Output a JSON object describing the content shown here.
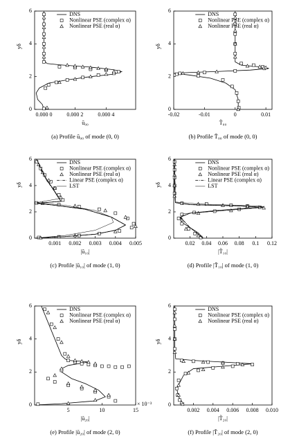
{
  "chart_data": [
    {
      "type": "line",
      "caption": "(a) Profile ū₀₀ of mode (0, 0)",
      "x_label": "ū₀₀",
      "y_label": "yδ",
      "xlim": [
        -6e-05,
        0.00059
      ],
      "ylim": [
        0,
        6
      ],
      "xticks": [
        {
          "value": 0,
          "label": "0.000 0"
        },
        {
          "value": 0.0002,
          "label": "0.000 2"
        },
        {
          "value": 0.0004,
          "label": "0.000 4"
        }
      ],
      "yticks": [
        0,
        2,
        4,
        6
      ],
      "series": [
        {
          "name": "DNS",
          "style": "solid",
          "x": [
            0,
            0,
            2e-05,
            0.0001,
            0.0003,
            0.00045,
            0.0005,
            0.00045,
            0.0003,
            0.00015,
            3e-05,
            -3e-05,
            -5e-05,
            -4e-05,
            -1e-05,
            0
          ],
          "y": [
            6,
            3,
            2.8,
            2.72,
            2.58,
            2.42,
            2.3,
            2.15,
            2.0,
            1.8,
            1.6,
            1.3,
            1.0,
            0.6,
            0.3,
            0
          ]
        },
        {
          "name": "Nonlinear PSE (complex α)",
          "style": "square",
          "x": [
            0,
            0,
            0,
            0,
            0,
            0,
            0.0001,
            0.0002,
            0.0003,
            0.0004,
            0.00048,
            0.00045,
            0.00035,
            0.00025,
            0.00015,
            8e-05,
            3e-05,
            1e-05,
            0
          ],
          "y": [
            5.8,
            5.2,
            4.6,
            4.0,
            3.4,
            2.9,
            2.6,
            2.55,
            2.45,
            2.4,
            2.3,
            2.2,
            2.1,
            1.95,
            1.8,
            1.65,
            1.5,
            1.3,
            0.05
          ]
        },
        {
          "name": "Nonlinear PSE (real α)",
          "style": "triangle",
          "x": [
            0,
            0,
            0,
            0,
            0,
            0.00015,
            0.0002,
            0.00025,
            0.0003,
            0.00035,
            0.0004,
            0.00045,
            0.0004,
            0.0003,
            0.0002,
            0.0001,
            2e-05
          ],
          "y": [
            5.6,
            5.0,
            4.4,
            3.8,
            3.2,
            2.7,
            2.65,
            2.6,
            2.55,
            2.5,
            2.45,
            2.3,
            2.15,
            2.0,
            1.85,
            1.65,
            0.1
          ]
        }
      ]
    },
    {
      "type": "line",
      "caption": "(b) Profile T̃₀₀ of mode (0, 0)",
      "x_label": "T̃₀₀",
      "y_label": "yδ",
      "xlim": [
        -0.02,
        0.012
      ],
      "ylim": [
        0,
        6
      ],
      "xticks": [
        -0.02,
        -0.01,
        0,
        0.01
      ],
      "yticks": [
        0,
        2,
        4,
        6
      ],
      "series": [
        {
          "name": "DNS",
          "style": "solid",
          "x": [
            0,
            0,
            0.002,
            0.008,
            0.011,
            0.005,
            -0.005,
            -0.015,
            -0.02,
            -0.015,
            -0.008,
            -0.003,
            0,
            0.001,
            0.001
          ],
          "y": [
            6,
            2.9,
            2.7,
            2.6,
            2.5,
            2.4,
            2.32,
            2.25,
            2.2,
            2.1,
            1.9,
            1.6,
            1.2,
            0.6,
            0
          ]
        },
        {
          "name": "Nonlinear PSE (complex α)",
          "style": "square",
          "x": [
            0,
            0,
            0,
            0,
            0,
            0.002,
            0.006,
            0.009,
            0.0095,
            0,
            -0.01,
            -0.018,
            -0.019,
            -0.012,
            -0.004,
            -0.001,
            0.0005,
            0.001,
            0.0012
          ],
          "y": [
            5.8,
            5.2,
            4.6,
            4.0,
            3.4,
            2.8,
            2.7,
            2.6,
            2.5,
            2.35,
            2.25,
            2.2,
            2.15,
            2.05,
            1.8,
            1.4,
            1.0,
            0.5,
            0.1
          ]
        },
        {
          "name": "Nonlinear PSE (real α)",
          "style": "triangle",
          "x": [
            0,
            0,
            0,
            0,
            0.004,
            0.008,
            0.01,
            -0.006,
            -0.012,
            -0.017,
            0.001
          ],
          "y": [
            5.6,
            4.8,
            4.0,
            3.2,
            2.65,
            2.6,
            2.55,
            2.3,
            2.25,
            2.2,
            0
          ]
        }
      ]
    },
    {
      "type": "line",
      "caption": "(c) Profile |ū₁₀| of mode (1, 0)",
      "x_label": "|ū₁₀|",
      "y_label": "yδ",
      "xlim": [
        0,
        0.005
      ],
      "ylim": [
        0,
        6
      ],
      "xticks": [
        0.001,
        0.002,
        0.003,
        0.004,
        0.005
      ],
      "yticks": [
        0,
        2,
        4,
        6
      ],
      "series": [
        {
          "name": "DNS",
          "style": "solid",
          "x": [
            0.0001,
            0.0003,
            0.0006,
            0.0009,
            0.0011,
            0.0013,
            0.0001,
            0.001,
            0.0025,
            0.0038,
            0.0045,
            0.004,
            0.003,
            0.0015,
            0
          ],
          "y": [
            6,
            5.2,
            4.4,
            3.8,
            3.3,
            2.8,
            2.65,
            2.5,
            2.2,
            1.6,
            1.0,
            0.6,
            0.3,
            0.12,
            0
          ]
        },
        {
          "name": "Nonlinear PSE (complex α)",
          "style": "square",
          "x": [
            0.0001,
            0.0003,
            0.0005,
            0.0008,
            0.001,
            0.0012,
            0.0014,
            0.0001,
            0.0012,
            0.0022,
            0.0032,
            0.004,
            0.0046,
            0.0049,
            0.0048,
            0.0042,
            0.0032,
            0.0022,
            0.0012,
            0.0002
          ],
          "y": [
            5.8,
            5.3,
            4.8,
            4.3,
            3.8,
            3.3,
            2.9,
            2.68,
            2.55,
            2.4,
            2.2,
            1.9,
            1.5,
            1.1,
            0.8,
            0.55,
            0.35,
            0.2,
            0.1,
            0.05
          ]
        },
        {
          "name": "Nonlinear PSE (real α)",
          "style": "triangle",
          "x": [
            0.0002,
            0.0004,
            0.0007,
            0.001,
            0.0013,
            0.0004,
            0.002,
            0.0035,
            0.0045,
            0.005,
            0.004,
            0.002,
            0.0003
          ],
          "y": [
            5.6,
            5.0,
            4.4,
            3.8,
            3.1,
            2.65,
            2.45,
            2.1,
            1.6,
            0.9,
            0.5,
            0.2,
            0.03
          ]
        },
        {
          "name": "Linear PSE (complex α)",
          "style": "dash-dot",
          "x": [
            0.0001,
            0.0006,
            0.0011,
            0.0013,
            0.0001,
            0.001,
            0.0025,
            0.0038,
            0.0045,
            0.004,
            0.003,
            0.0015,
            0
          ],
          "y": [
            6,
            4.4,
            3.3,
            2.8,
            2.65,
            2.5,
            2.2,
            1.6,
            1.0,
            0.6,
            0.3,
            0.12,
            0
          ]
        },
        {
          "name": "LST",
          "style": "thin",
          "x": [
            0.0001,
            0.0004,
            0.0008,
            0.0012,
            0.0001,
            0.0015,
            0.003,
            0.0038,
            0.0039,
            0.003,
            0.0015,
            0
          ],
          "y": [
            6,
            5,
            4,
            3,
            2.7,
            2.5,
            2.1,
            1.6,
            1.2,
            0.6,
            0.2,
            0
          ]
        }
      ]
    },
    {
      "type": "line",
      "caption": "(d) Profile |T̃₁₀| of mode (1, 0)",
      "x_label": "|T̃₁₀|",
      "y_label": "yδ",
      "xlim": [
        0,
        0.12
      ],
      "ylim": [
        0,
        6
      ],
      "xticks": [
        0.02,
        0.04,
        0.06,
        0.08,
        0.1,
        0.12
      ],
      "yticks": [
        0,
        2,
        4,
        6
      ],
      "series": [
        {
          "name": "DNS",
          "style": "solid",
          "x": [
            0.001,
            0.001,
            0.002,
            0.02,
            0.08,
            0.11,
            0.06,
            0.02,
            0.008,
            0.01,
            0.02,
            0.03,
            0.036
          ],
          "y": [
            6,
            3.5,
            2.7,
            2.55,
            2.45,
            2.35,
            2.1,
            1.9,
            1.6,
            1.2,
            0.8,
            0.4,
            0
          ]
        },
        {
          "name": "Nonlinear PSE (complex α)",
          "style": "square",
          "x": [
            0.001,
            0.001,
            0.001,
            0.001,
            0.001,
            0.01,
            0.04,
            0.07,
            0.09,
            0.105,
            0.08,
            0.05,
            0.025,
            0.01,
            0.006,
            0.01,
            0.018,
            0.026,
            0.033
          ],
          "y": [
            5.8,
            5.2,
            4.6,
            4.0,
            3.4,
            2.65,
            2.6,
            2.5,
            2.45,
            2.35,
            2.2,
            2.05,
            1.95,
            1.8,
            1.5,
            1.1,
            0.7,
            0.35,
            0.05
          ]
        },
        {
          "name": "Nonlinear PSE (real α)",
          "style": "triangle",
          "x": [
            0.001,
            0.001,
            0.001,
            0.001,
            0.03,
            0.06,
            0.09,
            0.11,
            0.07,
            0.03,
            0.01,
            0.015,
            0.03
          ],
          "y": [
            5.6,
            4.8,
            4.0,
            3.2,
            2.6,
            2.5,
            2.42,
            2.3,
            2.1,
            1.9,
            1.4,
            0.7,
            0.2
          ]
        },
        {
          "name": "Linear PSE (complex α)",
          "style": "dash-dot",
          "x": [
            0.001,
            0.002,
            0.02,
            0.08,
            0.11,
            0.06,
            0.02,
            0.008,
            0.02,
            0.036
          ],
          "y": [
            6,
            2.7,
            2.55,
            2.45,
            2.35,
            2.1,
            1.9,
            1.6,
            0.8,
            0
          ]
        },
        {
          "name": "LST",
          "style": "thin",
          "x": [
            0.001,
            0.002,
            0.03,
            0.1,
            0.11,
            0.05,
            0.012,
            0.009,
            0.02,
            0.035
          ],
          "y": [
            6,
            2.75,
            2.6,
            2.45,
            2.38,
            2.1,
            1.85,
            1.5,
            0.8,
            0
          ]
        }
      ]
    },
    {
      "type": "line",
      "caption": "(e) Profile |ū₂₀| of mode (2, 0)",
      "x_label": "|ū₂₀|",
      "y_label": "yδ",
      "x_multiplier": "× 10⁻³",
      "xlim": [
        0,
        15
      ],
      "ylim": [
        0,
        6
      ],
      "xticks": [
        5,
        10,
        15
      ],
      "yticks": [
        0,
        2,
        4,
        6
      ],
      "series": [
        {
          "name": "DNS",
          "style": "solid",
          "x": [
            1,
            2,
            3,
            4,
            4.5,
            5,
            7,
            8,
            5,
            4,
            4,
            5.5,
            7.5,
            9.5,
            10.5,
            9,
            4,
            0
          ],
          "y": [
            6,
            5,
            4,
            3,
            2.8,
            2.7,
            2.65,
            2.6,
            2.4,
            2.2,
            2.0,
            1.6,
            1.3,
            0.9,
            0.5,
            0.25,
            0.08,
            0
          ]
        },
        {
          "name": "Nonlinear PSE (complex α)",
          "style": "square",
          "x": [
            1.5,
            2.5,
            3.5,
            4.5,
            5,
            6,
            7,
            8,
            9,
            10,
            11,
            12,
            13,
            14,
            4,
            2,
            3,
            5,
            7,
            9,
            11,
            12,
            0.5
          ],
          "y": [
            5.8,
            4.9,
            4.0,
            3.1,
            2.7,
            2.6,
            2.5,
            2.45,
            2.4,
            2.35,
            2.35,
            2.3,
            2.3,
            2.35,
            2.1,
            1.6,
            1.4,
            1.2,
            1.0,
            0.8,
            0.5,
            0.25,
            0.05
          ]
        },
        {
          "name": "Nonlinear PSE (real α)",
          "style": "triangle",
          "x": [
            2,
            3,
            4,
            5,
            6,
            7,
            8,
            9,
            4,
            3,
            5,
            7,
            9,
            11,
            9,
            5
          ],
          "y": [
            5.6,
            4.7,
            3.8,
            2.95,
            2.7,
            2.65,
            2.6,
            2.5,
            2.2,
            1.8,
            1.3,
            1.1,
            0.9,
            0.6,
            0.3,
            0.1
          ]
        }
      ]
    },
    {
      "type": "line",
      "caption": "(f) Profile |T̃₂₀| of mode (2, 0)",
      "x_label": "|T̃₂₀|",
      "y_label": "yδ",
      "xlim": [
        0,
        0.01
      ],
      "ylim": [
        0,
        6
      ],
      "xticks": [
        0.002,
        0.004,
        0.006,
        0.008,
        {
          "value": 0.01,
          "label": "0.010"
        }
      ],
      "yticks": [
        0,
        2,
        4,
        6
      ],
      "series": [
        {
          "name": "DNS",
          "style": "solid",
          "x": [
            0.0001,
            0.0001,
            0.0002,
            0.002,
            0.005,
            0.008,
            0.005,
            0.002,
            0.001,
            0.0003,
            0.0005,
            0.0008,
            0.001
          ],
          "y": [
            6,
            3.5,
            2.8,
            2.7,
            2.6,
            2.5,
            2.35,
            2.2,
            1.8,
            1.0,
            0.5,
            0.2,
            0
          ]
        },
        {
          "name": "Nonlinear PSE (complex α)",
          "style": "square",
          "x": [
            0.0001,
            0.0001,
            0.0001,
            0.0001,
            0.0001,
            0.0008,
            0.002,
            0.0035,
            0.005,
            0.0065,
            0.008,
            0.006,
            0.004,
            0.0025,
            0.0012,
            0.0005,
            0.0003,
            0.0004,
            0.0006,
            0.0009
          ],
          "y": [
            5.8,
            5.2,
            4.6,
            4.0,
            3.4,
            2.7,
            2.65,
            2.6,
            2.55,
            2.5,
            2.45,
            2.35,
            2.25,
            2.1,
            1.9,
            1.5,
            1.0,
            0.6,
            0.3,
            0.05
          ]
        },
        {
          "name": "Nonlinear PSE (real α)",
          "style": "triangle",
          "x": [
            0.0001,
            0.0001,
            0.0001,
            0.0001,
            0.001,
            0.003,
            0.005,
            0.007,
            0.005,
            0.003,
            0.0015,
            0.0005,
            0.0005,
            0.0008
          ],
          "y": [
            5.6,
            4.8,
            4.0,
            3.2,
            2.65,
            2.6,
            2.55,
            2.45,
            2.3,
            2.15,
            1.95,
            1.2,
            0.6,
            0.15
          ]
        }
      ]
    }
  ]
}
